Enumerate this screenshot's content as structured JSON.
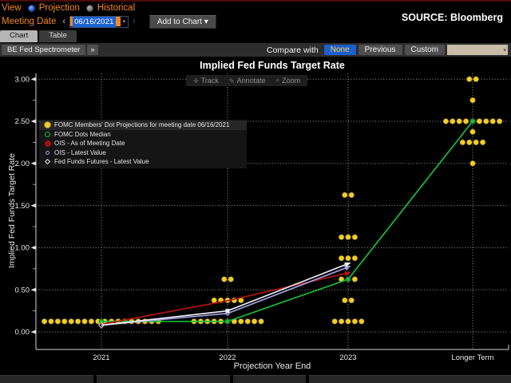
{
  "header": {
    "view_label": "View",
    "radio_projection": "Projection",
    "radio_historical": "Historical",
    "meeting_date_label": "Meeting Date",
    "prev_chevron": "‹",
    "next_chevron": "›",
    "date_value": "06/16/2021",
    "input_caret": "▾",
    "add_to_chart_label": "Add to Chart ▾",
    "source_label": "SOURCE: Bloomberg"
  },
  "tabs": [
    {
      "label": "Chart",
      "active": true
    },
    {
      "label": "Table",
      "active": false
    }
  ],
  "toolbar": {
    "breadcrumb": "BE Fed Spectrometer",
    "breadcrumb_more": "»",
    "compare_label": "Compare with",
    "compare_options": [
      {
        "label": "None",
        "active": true
      },
      {
        "label": "Previous",
        "active": false
      },
      {
        "label": "Custom",
        "active": false
      }
    ],
    "compare_custom_caret": "▾"
  },
  "chart_tools": [
    {
      "icon": "✛",
      "label": "Track"
    },
    {
      "icon": "✎",
      "label": "Annotate"
    },
    {
      "icon": "⌕",
      "label": "Zoom"
    }
  ],
  "chart_data": {
    "type": "scatter",
    "title": "Implied Fed Funds Target Rate",
    "xlabel": "Projection Year End",
    "ylabel": "Implied Fed Funds Target Rate",
    "ylim": [
      0,
      3.0
    ],
    "ytick_step": 0.5,
    "grid": "dotted",
    "categories": [
      "2021",
      "2022",
      "2023",
      "Longer Term"
    ],
    "dots_color": "#f2cd2a",
    "dots": [
      {
        "category": "2021",
        "value": 0.125,
        "count": 18
      },
      {
        "category": "2022",
        "value": 0.125,
        "count": 11
      },
      {
        "category": "2022",
        "value": 0.375,
        "count": 5
      },
      {
        "category": "2022",
        "value": 0.625,
        "count": 2
      },
      {
        "category": "2023",
        "value": 0.125,
        "count": 5
      },
      {
        "category": "2023",
        "value": 0.375,
        "count": 2
      },
      {
        "category": "2023",
        "value": 0.625,
        "count": 3
      },
      {
        "category": "2023",
        "value": 0.875,
        "count": 3
      },
      {
        "category": "2023",
        "value": 1.125,
        "count": 3
      },
      {
        "category": "2023",
        "value": 1.625,
        "count": 2
      },
      {
        "category": "Longer Term",
        "value": 2.0,
        "count": 1
      },
      {
        "category": "Longer Term",
        "value": 2.25,
        "count": 4
      },
      {
        "category": "Longer Term",
        "value": 2.375,
        "count": 1
      },
      {
        "category": "Longer Term",
        "value": 2.5,
        "count": 9
      },
      {
        "category": "Longer Term",
        "value": 2.75,
        "count": 1
      },
      {
        "category": "Longer Term",
        "value": 3.0,
        "count": 2
      }
    ],
    "series": [
      {
        "name": "FOMC Dots Median",
        "color": "#17bd3a",
        "marker": "circle",
        "end_arrow": false,
        "points": [
          [
            "2021",
            0.125
          ],
          [
            "2022",
            0.125
          ],
          [
            "2023",
            0.625
          ],
          [
            "Longer Term",
            2.5
          ]
        ]
      },
      {
        "name": "OIS - As of Meeting Date",
        "color": "#b31212",
        "marker": null,
        "end_arrow": true,
        "points": [
          [
            "2021",
            0.09
          ],
          [
            "2022",
            0.37
          ],
          [
            "2023",
            0.7
          ]
        ]
      },
      {
        "name": "OIS - Latest Value",
        "color": "#a0a0e0",
        "marker": "mid-circle",
        "end_arrow": true,
        "points": [
          [
            "2021",
            0.08
          ],
          [
            "2022",
            0.22
          ],
          [
            "2023",
            0.77
          ]
        ]
      },
      {
        "name": "Fed Funds Futures - Latest Value",
        "color": "#ededf5",
        "marker": "mid-square",
        "start_marker": "diamond",
        "end_arrow": true,
        "points": [
          [
            "2021",
            0.08
          ],
          [
            "2022",
            0.25
          ],
          [
            "2023",
            0.81
          ]
        ]
      }
    ],
    "legend": [
      {
        "marker": "dot-yellow",
        "label": "FOMC Members' Dot Projections for meeting date 06/16/2021"
      },
      {
        "marker": "ring-green",
        "label": "FOMC Dots Median"
      },
      {
        "marker": "dot-red",
        "label": "OIS - As of Meeting Date"
      },
      {
        "marker": "ring-lavender",
        "label": "OIS - Latest Value"
      },
      {
        "marker": "diamond-white",
        "label": "Fed Funds Futures - Latest Value"
      }
    ],
    "legend_position": "upper-left"
  }
}
